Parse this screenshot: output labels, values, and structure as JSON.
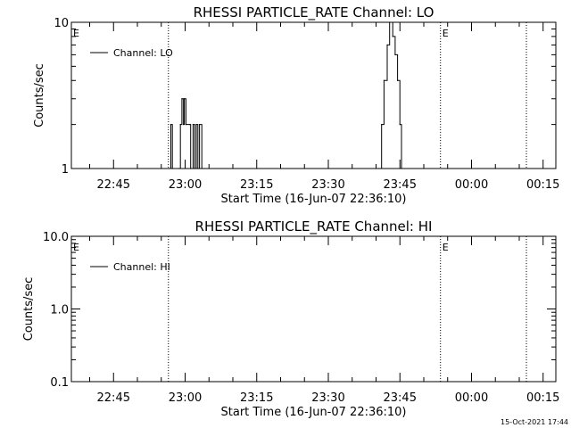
{
  "chart_data": [
    {
      "type": "line",
      "title": "RHESSI PARTICLE_RATE Channel: LO",
      "xlabel": "Start Time (16-Jun-07 22:36:10)",
      "ylabel": "Counts/sec",
      "y_scale": "log",
      "ylim": [
        1,
        10
      ],
      "y_ticks": [
        "1",
        "10"
      ],
      "x_ticks": [
        "22:45",
        "23:00",
        "23:15",
        "23:30",
        "23:45",
        "00:00",
        "00:15"
      ],
      "xlim": [
        "22:36:10",
        "00:17:40"
      ],
      "legend": {
        "label": "Channel: LO",
        "position": "top-left"
      },
      "vertical_markers": [
        "22:56:30",
        "23:53:30",
        "00:11:30"
      ],
      "marker_labels": [
        {
          "text": "E",
          "at": "22:36:10"
        },
        {
          "text": "E",
          "at": "23:53:30"
        }
      ],
      "series": [
        {
          "name": "Channel: LO",
          "points": [
            [
              "22:56:40",
              1
            ],
            [
              "22:57:00",
              2
            ],
            [
              "22:57:20",
              1
            ],
            [
              "22:58:40",
              1
            ],
            [
              "22:59:00",
              2
            ],
            [
              "22:59:20",
              3
            ],
            [
              "22:59:40",
              2
            ],
            [
              "22:59:50",
              3
            ],
            [
              "23:00:10",
              2
            ],
            [
              "23:01:00",
              2
            ],
            [
              "23:01:10",
              1
            ],
            [
              "23:01:40",
              2
            ],
            [
              "23:02:00",
              1
            ],
            [
              "23:02:20",
              2
            ],
            [
              "23:02:40",
              1
            ],
            [
              "23:03:00",
              2
            ],
            [
              "23:03:30",
              1
            ],
            [
              "23:04:00",
              1
            ],
            [
              "23:40:30",
              1
            ],
            [
              "23:41:10",
              2
            ],
            [
              "23:41:40",
              4
            ],
            [
              "23:42:20",
              7
            ],
            [
              "23:42:50",
              10
            ],
            [
              "23:43:30",
              8
            ],
            [
              "23:44:00",
              6
            ],
            [
              "23:44:30",
              4
            ],
            [
              "23:45:00",
              2
            ],
            [
              "23:45:20",
              1
            ]
          ]
        }
      ]
    },
    {
      "type": "line",
      "title": "RHESSI PARTICLE_RATE Channel: HI",
      "xlabel": "Start Time (16-Jun-07 22:36:10)",
      "ylabel": "Counts/sec",
      "y_scale": "log",
      "ylim": [
        0.1,
        10
      ],
      "y_ticks": [
        "0.1",
        "1.0",
        "10.0"
      ],
      "x_ticks": [
        "22:45",
        "23:00",
        "23:15",
        "23:30",
        "23:45",
        "00:00",
        "00:15"
      ],
      "xlim": [
        "22:36:10",
        "00:17:40"
      ],
      "legend": {
        "label": "Channel: HI",
        "position": "top-left"
      },
      "vertical_markers": [
        "22:56:30",
        "23:53:30",
        "00:11:30"
      ],
      "marker_labels": [
        {
          "text": "E",
          "at": "22:36:10"
        },
        {
          "text": "E",
          "at": "23:53:30"
        }
      ],
      "series": [
        {
          "name": "Channel: HI",
          "points": []
        }
      ]
    }
  ],
  "footer": {
    "timestamp": "15-Oct-2021 17:44"
  }
}
